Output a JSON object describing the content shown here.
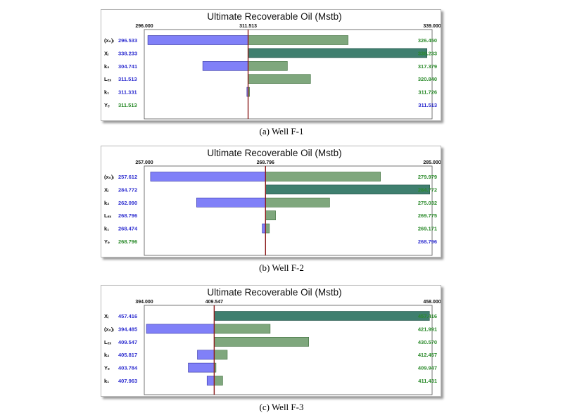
{
  "chart_data": [
    {
      "type": "bar",
      "title": "Ultimate Recoverable Oil (Mstb)",
      "caption": "(a) Well F-1",
      "base_value": 311.513,
      "xlim": [
        296.0,
        339.0
      ],
      "ticks": [
        "296.000",
        "311.513",
        "339.000"
      ],
      "rows": [
        {
          "label": "(x₀)ₗ",
          "left_value": "296.533",
          "right_value": "326.450",
          "low": 296.533,
          "high": 326.45
        },
        {
          "label": "Xᵢ",
          "left_value": "338.233",
          "right_value": "338.233",
          "low": 311.513,
          "high": 338.233
        },
        {
          "label": "k₂",
          "left_value": "304.741",
          "right_value": "317.379",
          "low": 304.741,
          "high": 317.379
        },
        {
          "label": "Lₑₓ",
          "left_value": "311.513",
          "right_value": "320.840",
          "low": 311.513,
          "high": 320.84
        },
        {
          "label": "k₁",
          "left_value": "311.331",
          "right_value": "311.726",
          "low": 311.331,
          "high": 311.726
        },
        {
          "label": "Yₑ",
          "left_value": "311.513",
          "right_value": "311.513",
          "low": 311.513,
          "high": 311.513
        }
      ]
    },
    {
      "type": "bar",
      "title": "Ultimate Recoverable Oil (Mstb)",
      "caption": "(b) Well F-2",
      "base_value": 268.796,
      "xlim": [
        257.0,
        285.0
      ],
      "ticks": [
        "257.000",
        "268.796",
        "285.000"
      ],
      "rows": [
        {
          "label": "(x₀)ₗ",
          "left_value": "257.612",
          "right_value": "279.979",
          "low": 257.612,
          "high": 279.979
        },
        {
          "label": "Xᵢ",
          "left_value": "284.772",
          "right_value": "284.772",
          "low": 268.796,
          "high": 284.772
        },
        {
          "label": "k₂",
          "left_value": "262.090",
          "right_value": "275.032",
          "low": 262.09,
          "high": 275.032
        },
        {
          "label": "Lₑₓ",
          "left_value": "268.796",
          "right_value": "269.775",
          "low": 268.796,
          "high": 269.775
        },
        {
          "label": "k₁",
          "left_value": "268.474",
          "right_value": "269.171",
          "low": 268.474,
          "high": 269.171
        },
        {
          "label": "Yₑ",
          "left_value": "268.796",
          "right_value": "268.796",
          "low": 268.796,
          "high": 268.796
        }
      ]
    },
    {
      "type": "bar",
      "title": "Ultimate Recoverable Oil (Mstb)",
      "caption": "(c) Well F-3",
      "base_value": 409.547,
      "xlim": [
        394.0,
        458.0
      ],
      "ticks": [
        "394.000",
        "409.547",
        "458.000"
      ],
      "rows": [
        {
          "label": "Xᵢ",
          "left_value": "457.416",
          "right_value": "457.416",
          "low": 409.547,
          "high": 457.416
        },
        {
          "label": "(x₀)ₗ",
          "left_value": "394.485",
          "right_value": "421.991",
          "low": 394.485,
          "high": 421.991
        },
        {
          "label": "Lₑₓ",
          "left_value": "409.547",
          "right_value": "430.570",
          "low": 409.547,
          "high": 430.57
        },
        {
          "label": "k₂",
          "left_value": "405.817",
          "right_value": "412.457",
          "low": 405.817,
          "high": 412.457
        },
        {
          "label": "Yₑ",
          "left_value": "403.784",
          "right_value": "409.947",
          "low": 403.784,
          "high": 409.947
        },
        {
          "label": "k₁",
          "left_value": "407.963",
          "right_value": "411.431",
          "low": 407.963,
          "high": 411.431
        }
      ]
    }
  ],
  "colors": {
    "low_bar": "#8080f8",
    "high_bar": "#7fa77d",
    "full_bar": "#3f7f6f",
    "base_line": "#8b1a1a",
    "blue_text": "#2f2fd0",
    "green_text": "#2a8a2a"
  }
}
